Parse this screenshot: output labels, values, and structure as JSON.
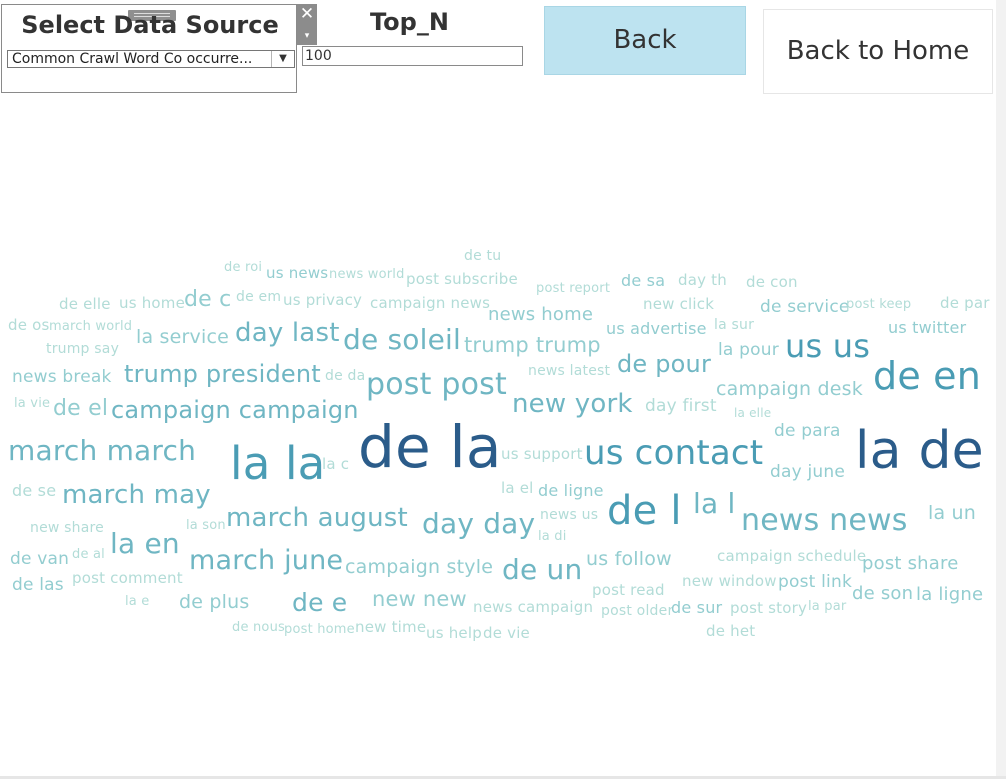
{
  "source_panel": {
    "title": "Select Data Source",
    "selected": "Common Crawl Word Co occurre...",
    "close_glyph": "✕",
    "menu_glyph": "▾",
    "arrow_glyph": "▼"
  },
  "top_n": {
    "title": "Top_N",
    "value": "100"
  },
  "buttons": {
    "back": "Back",
    "home": "Back to Home"
  },
  "colors": {
    "accent": "#bde3f0",
    "tier1": "#2b5c8a",
    "tier2": "#4a9cb4",
    "tier3": "#6fb6c3",
    "tier4": "#93cdd0",
    "tier5": "#b2dcd7"
  },
  "word_cloud": [
    {
      "text": "de tu",
      "size": 14,
      "tier": 5
    },
    {
      "text": "de roi",
      "size": 13,
      "tier": 5
    },
    {
      "text": "us news",
      "size": 15,
      "tier": 4
    },
    {
      "text": "news world",
      "size": 13,
      "tier": 5
    },
    {
      "text": "post subscribe",
      "size": 15,
      "tier": 5
    },
    {
      "text": "post report",
      "size": 13,
      "tier": 5
    },
    {
      "text": "de sa",
      "size": 16,
      "tier": 4
    },
    {
      "text": "day th",
      "size": 15,
      "tier": 5
    },
    {
      "text": "de con",
      "size": 15,
      "tier": 5
    },
    {
      "text": "de elle",
      "size": 15,
      "tier": 5
    },
    {
      "text": "us home",
      "size": 15,
      "tier": 5
    },
    {
      "text": "de c",
      "size": 22,
      "tier": 4
    },
    {
      "text": "de em",
      "size": 14,
      "tier": 5
    },
    {
      "text": "us privacy",
      "size": 15,
      "tier": 5
    },
    {
      "text": "campaign news",
      "size": 15,
      "tier": 5
    },
    {
      "text": "new click",
      "size": 15,
      "tier": 5
    },
    {
      "text": "de service",
      "size": 17,
      "tier": 4
    },
    {
      "text": "post keep",
      "size": 13,
      "tier": 5
    },
    {
      "text": "de par",
      "size": 15,
      "tier": 5
    },
    {
      "text": "de os",
      "size": 15,
      "tier": 5
    },
    {
      "text": "march world",
      "size": 13,
      "tier": 5
    },
    {
      "text": "la service",
      "size": 19,
      "tier": 4
    },
    {
      "text": "day last",
      "size": 26,
      "tier": 3
    },
    {
      "text": "de soleil",
      "size": 28,
      "tier": 3
    },
    {
      "text": "news home",
      "size": 18,
      "tier": 4
    },
    {
      "text": "us advertise",
      "size": 16,
      "tier": 4
    },
    {
      "text": "la sur",
      "size": 14,
      "tier": 5
    },
    {
      "text": "us twitter",
      "size": 16,
      "tier": 4
    },
    {
      "text": "trump say",
      "size": 14,
      "tier": 5
    },
    {
      "text": "trump trump",
      "size": 21,
      "tier": 4
    },
    {
      "text": "la pour",
      "size": 17,
      "tier": 4
    },
    {
      "text": "us us",
      "size": 32,
      "tier": 2
    },
    {
      "text": "news break",
      "size": 17,
      "tier": 4
    },
    {
      "text": "trump president",
      "size": 24,
      "tier": 3
    },
    {
      "text": "de da",
      "size": 14,
      "tier": 5
    },
    {
      "text": "news latest",
      "size": 14,
      "tier": 5
    },
    {
      "text": "de pour",
      "size": 24,
      "tier": 3
    },
    {
      "text": "de en",
      "size": 38,
      "tier": 2
    },
    {
      "text": "post post",
      "size": 30,
      "tier": 3
    },
    {
      "text": "campaign desk",
      "size": 19,
      "tier": 4
    },
    {
      "text": "la vie",
      "size": 13,
      "tier": 5
    },
    {
      "text": "de el",
      "size": 22,
      "tier": 4
    },
    {
      "text": "campaign campaign",
      "size": 24,
      "tier": 3
    },
    {
      "text": "new york",
      "size": 26,
      "tier": 3
    },
    {
      "text": "day first",
      "size": 17,
      "tier": 5
    },
    {
      "text": "la elle",
      "size": 12,
      "tier": 5
    },
    {
      "text": "de para",
      "size": 17,
      "tier": 4
    },
    {
      "text": "march march",
      "size": 28,
      "tier": 3
    },
    {
      "text": "la la",
      "size": 45,
      "tier": 2
    },
    {
      "text": "la c",
      "size": 15,
      "tier": 5
    },
    {
      "text": "de la",
      "size": 58,
      "tier": 1
    },
    {
      "text": "us support",
      "size": 15,
      "tier": 5
    },
    {
      "text": "us contact",
      "size": 34,
      "tier": 2
    },
    {
      "text": "la de",
      "size": 52,
      "tier": 1
    },
    {
      "text": "day june",
      "size": 17,
      "tier": 4
    },
    {
      "text": "de se",
      "size": 16,
      "tier": 5
    },
    {
      "text": "march may",
      "size": 26,
      "tier": 3
    },
    {
      "text": "la el",
      "size": 15,
      "tier": 5
    },
    {
      "text": "de ligne",
      "size": 16,
      "tier": 4
    },
    {
      "text": "de l",
      "size": 40,
      "tier": 2
    },
    {
      "text": "la l",
      "size": 28,
      "tier": 3
    },
    {
      "text": "new share",
      "size": 14,
      "tier": 5
    },
    {
      "text": "la son",
      "size": 13,
      "tier": 5
    },
    {
      "text": "march august",
      "size": 26,
      "tier": 3
    },
    {
      "text": "day day",
      "size": 28,
      "tier": 3
    },
    {
      "text": "news us",
      "size": 14,
      "tier": 5
    },
    {
      "text": "news news",
      "size": 30,
      "tier": 3
    },
    {
      "text": "la un",
      "size": 19,
      "tier": 4
    },
    {
      "text": "la di",
      "size": 13,
      "tier": 5
    },
    {
      "text": "la en",
      "size": 28,
      "tier": 3
    },
    {
      "text": "de van",
      "size": 17,
      "tier": 4
    },
    {
      "text": "de al",
      "size": 13,
      "tier": 5
    },
    {
      "text": "march june",
      "size": 27,
      "tier": 3
    },
    {
      "text": "campaign style",
      "size": 19,
      "tier": 4
    },
    {
      "text": "de un",
      "size": 28,
      "tier": 3
    },
    {
      "text": "us follow",
      "size": 19,
      "tier": 4
    },
    {
      "text": "campaign schedule",
      "size": 15,
      "tier": 5
    },
    {
      "text": "post share",
      "size": 18,
      "tier": 4
    },
    {
      "text": "post comment",
      "size": 15,
      "tier": 5
    },
    {
      "text": "new window",
      "size": 15,
      "tier": 5
    },
    {
      "text": "post link",
      "size": 17,
      "tier": 4
    },
    {
      "text": "de las",
      "size": 17,
      "tier": 4
    },
    {
      "text": "post read",
      "size": 15,
      "tier": 5
    },
    {
      "text": "de son",
      "size": 18,
      "tier": 4
    },
    {
      "text": "la ligne",
      "size": 18,
      "tier": 4
    },
    {
      "text": "la e",
      "size": 13,
      "tier": 5
    },
    {
      "text": "de plus",
      "size": 19,
      "tier": 4
    },
    {
      "text": "de e",
      "size": 25,
      "tier": 3
    },
    {
      "text": "new new",
      "size": 21,
      "tier": 4
    },
    {
      "text": "news campaign",
      "size": 15,
      "tier": 5
    },
    {
      "text": "post older",
      "size": 14,
      "tier": 5
    },
    {
      "text": "de sur",
      "size": 16,
      "tier": 4
    },
    {
      "text": "post story",
      "size": 15,
      "tier": 5
    },
    {
      "text": "la par",
      "size": 13,
      "tier": 5
    },
    {
      "text": "de nous",
      "size": 13,
      "tier": 5
    },
    {
      "text": "post home",
      "size": 13,
      "tier": 5
    },
    {
      "text": "new time",
      "size": 15,
      "tier": 5
    },
    {
      "text": "us help",
      "size": 15,
      "tier": 5
    },
    {
      "text": "de vie",
      "size": 15,
      "tier": 5
    },
    {
      "text": "de het",
      "size": 15,
      "tier": 5
    }
  ]
}
